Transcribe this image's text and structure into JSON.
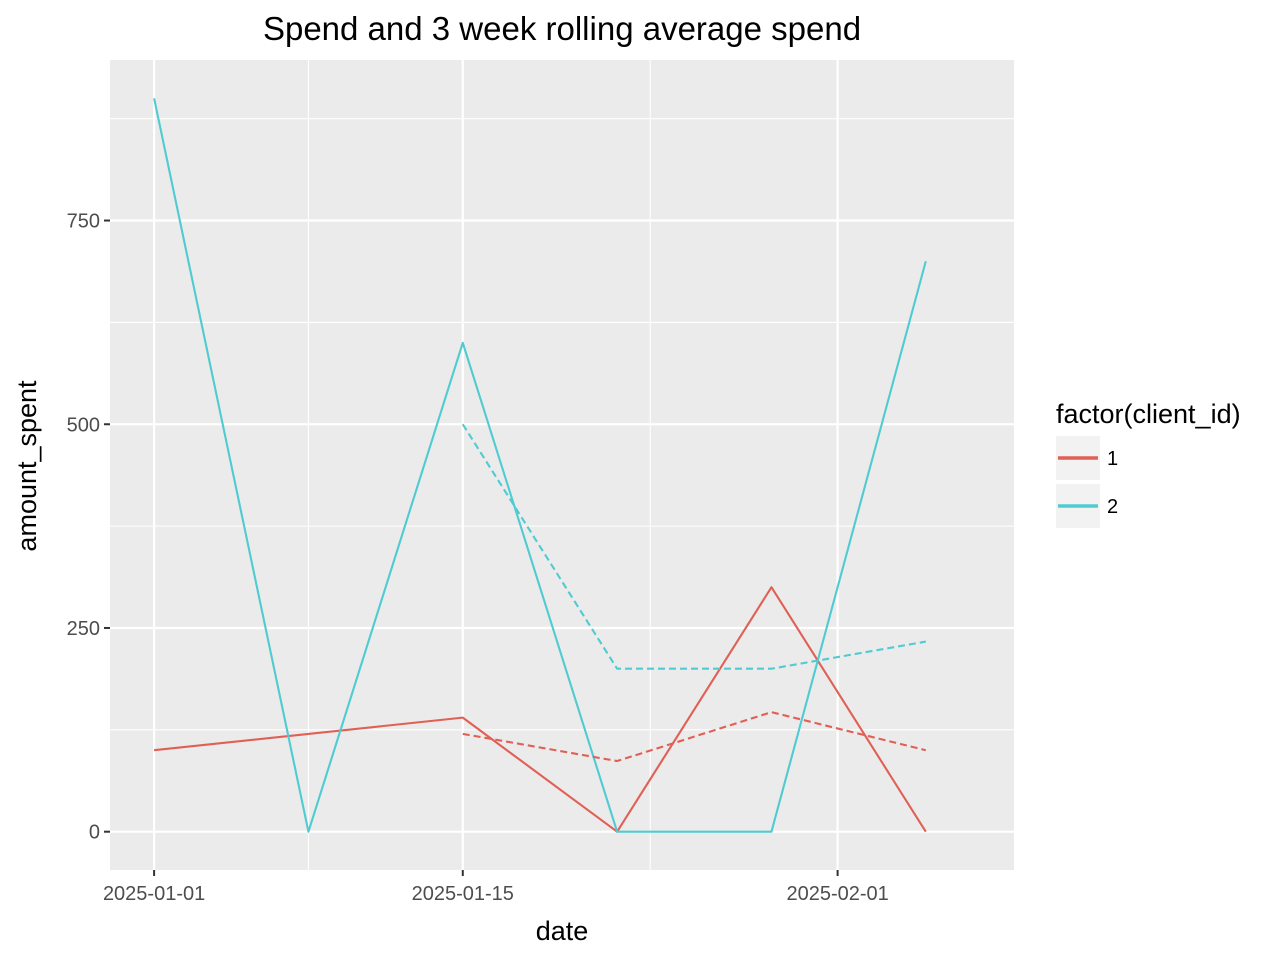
{
  "chart_data": {
    "type": "line",
    "title": "Spend and 3 week rolling average spend",
    "xlabel": "date",
    "ylabel": "amount_spent",
    "x_ticks": [
      "2025-01-01",
      "2025-01-15",
      "2025-02-01"
    ],
    "y_ticks": [
      0,
      250,
      500,
      750
    ],
    "xlim": [
      "2024-12-30",
      "2025-02-09"
    ],
    "ylim": [
      -47,
      947
    ],
    "grid": true,
    "legend": {
      "title": "factor(client_id)",
      "position": "right",
      "entries": [
        "1",
        "2"
      ]
    },
    "colors": {
      "1": "#E06055",
      "2": "#4FCBD1",
      "panel": "#EBEBEB",
      "grid": "#FFFFFF",
      "tick": "#4D4D4D"
    },
    "series": [
      {
        "name": "1",
        "kind": "spend",
        "style": "solid",
        "color": "#E06055",
        "x": [
          "2025-01-01",
          "2025-01-15",
          "2025-01-22",
          "2025-01-29",
          "2025-02-05"
        ],
        "y": [
          100,
          140,
          0,
          300,
          0
        ]
      },
      {
        "name": "2",
        "kind": "spend",
        "style": "solid",
        "color": "#4FCBD1",
        "x": [
          "2025-01-01",
          "2025-01-08",
          "2025-01-15",
          "2025-01-22",
          "2025-01-29",
          "2025-02-05"
        ],
        "y": [
          900,
          0,
          600,
          0,
          0,
          700
        ]
      },
      {
        "name": "1",
        "kind": "rolling_avg",
        "style": "dashed",
        "color": "#E06055",
        "x": [
          "2025-01-15",
          "2025-01-22",
          "2025-01-29",
          "2025-02-05"
        ],
        "y": [
          120,
          86.7,
          146.7,
          100
        ]
      },
      {
        "name": "2",
        "kind": "rolling_avg",
        "style": "dashed",
        "color": "#4FCBD1",
        "x": [
          "2025-01-15",
          "2025-01-22",
          "2025-01-29",
          "2025-02-05"
        ],
        "y": [
          500,
          200,
          200,
          233.3
        ]
      }
    ]
  }
}
